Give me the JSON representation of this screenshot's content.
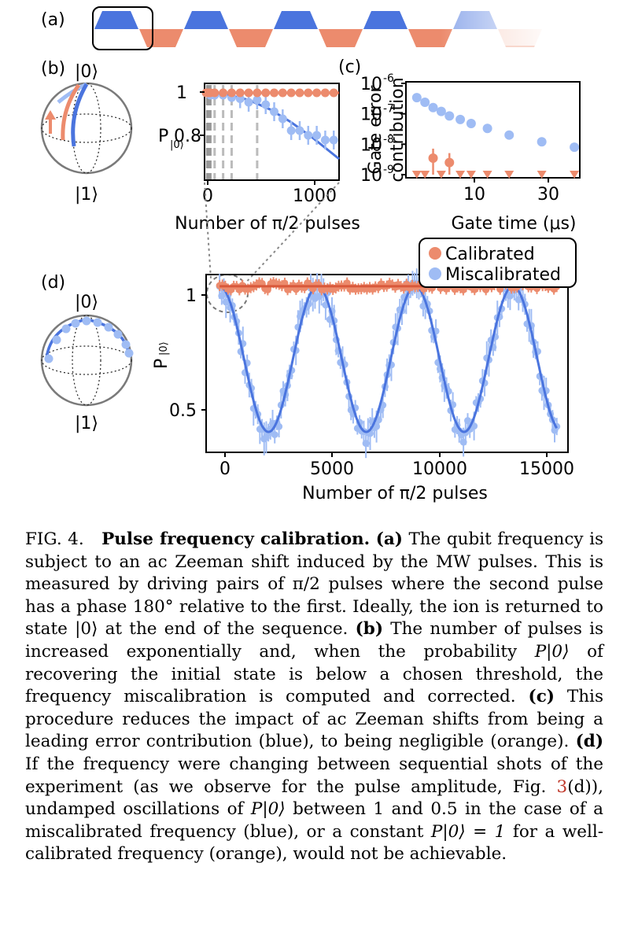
{
  "panel_labels": {
    "a": "(a)",
    "b": "(b)",
    "c": "(c)",
    "d": "(d)"
  },
  "colors": {
    "calibrated": "#ec8b6d",
    "calibrated_fit": "#d9583b",
    "miscalibrated": "#9fbcf4",
    "miscalibrated_fit": "#4a74de",
    "pulse_blue": "#4a74de",
    "pulse_orange": "#ec8b6d"
  },
  "pulses": {
    "description_glyph": "trapezoid-pulse-train",
    "count": 10
  },
  "bloch_b": {
    "top_label": "|0⟩",
    "bottom_label": "|1⟩"
  },
  "bloch_d": {
    "top_label": "|0⟩",
    "bottom_label": "|1⟩"
  },
  "panel_b": {
    "ylabel": "P|0⟩",
    "ylabel_main": "P",
    "ylabel_sub": "|0⟩",
    "xlabel": "Number of π/2 pulses",
    "yticks": [
      "1",
      "0.8"
    ],
    "xticks": [
      "0",
      "1000"
    ]
  },
  "panel_c": {
    "ylabel_line1": "Gate error",
    "ylabel_line2": "contribution",
    "xlabel": "Gate time (μs)",
    "xticks": [
      "10",
      "30"
    ],
    "yticks": [
      {
        "base": "10",
        "exp": "-6"
      },
      {
        "base": "10",
        "exp": "-7"
      },
      {
        "base": "10",
        "exp": "-8"
      },
      {
        "base": "10",
        "exp": "-9"
      }
    ]
  },
  "panel_d": {
    "ylabel_main": "P",
    "ylabel_sub": "|0⟩",
    "xlabel": "Number of π/2 pulses",
    "yticks": [
      "1",
      "0.5"
    ],
    "xticks": [
      "0",
      "5000",
      "10000",
      "15000"
    ],
    "legend": [
      "Calibrated",
      "Miscalibrated"
    ]
  },
  "chart_data": [
    {
      "id": "b",
      "type": "scatter",
      "xlim": [
        0,
        1250
      ],
      "ylim": [
        0.63,
        1.04
      ],
      "xlabel": "Number of π/2 pulses",
      "ylabel": "P|0⟩",
      "series": [
        {
          "name": "Calibrated",
          "x": [
            0,
            10,
            20,
            40,
            80,
            160,
            240,
            320,
            400,
            480,
            560,
            640,
            720,
            800,
            880,
            960,
            1040,
            1120,
            1200
          ],
          "y": [
            1,
            1,
            1,
            1,
            1,
            1,
            1,
            1,
            1,
            1,
            1,
            1,
            1,
            1,
            1,
            1,
            1,
            1,
            1
          ]
        },
        {
          "name": "Miscalibrated",
          "x": [
            0,
            10,
            20,
            40,
            80,
            160,
            240,
            320,
            400,
            480,
            560,
            640,
            720,
            800,
            880,
            960,
            1040,
            1120,
            1200
          ],
          "y": [
            1.0,
            1.0,
            1.0,
            0.99,
            0.99,
            0.99,
            0.98,
            0.975,
            0.96,
            0.97,
            0.95,
            0.92,
            0.89,
            0.84,
            0.84,
            0.82,
            0.82,
            0.8,
            0.8
          ]
        }
      ],
      "fit_miscalibrated": {
        "x": [
          0,
          200,
          400,
          600,
          800,
          1000,
          1250
        ],
        "y": [
          1.0,
          0.992,
          0.97,
          0.93,
          0.875,
          0.81,
          0.72
        ]
      },
      "guide_lines_x": [
        10,
        20,
        40,
        80,
        160,
        240,
        480
      ]
    },
    {
      "id": "c",
      "type": "scatter",
      "xscale": "linear",
      "yscale": "log",
      "xlim": [
        5,
        37
      ],
      "ylim": [
        1e-09,
        1e-06
      ],
      "xlabel": "Gate time (μs)",
      "ylabel": "Gate error contribution",
      "series": [
        {
          "name": "Miscalibrated",
          "x": [
            7,
            8.5,
            10,
            11.5,
            13,
            15,
            17,
            20,
            24,
            30,
            36
          ],
          "y": [
            3.4e-07,
            2.4e-07,
            1.6e-07,
            1.2e-07,
            8.5e-08,
            6.5e-08,
            4.8e-08,
            3.3e-08,
            2e-08,
            1.2e-08,
            8e-09
          ]
        },
        {
          "name": "Calibrated",
          "x": [
            7,
            8.5,
            10,
            11.5,
            13,
            15,
            17,
            20,
            24,
            30,
            36
          ],
          "y": [
            1e-09,
            1e-09,
            3.5e-09,
            1e-09,
            2.5e-09,
            1e-09,
            1e-09,
            1e-09,
            1e-09,
            1e-09,
            1e-09
          ],
          "upper_limit_markers_x": [
            7,
            8.5,
            11.5,
            15,
            17,
            20,
            24,
            30,
            36
          ]
        }
      ]
    },
    {
      "id": "d",
      "type": "scatter",
      "xlim": [
        -600,
        15500
      ],
      "ylim": [
        0.43,
        1.04
      ],
      "xlabel": "Number of π/2 pulses",
      "ylabel": "P|0⟩",
      "series": [
        {
          "name": "Calibrated",
          "model": "constant",
          "value": 1.0,
          "x_range": [
            0,
            15000
          ],
          "points": 120
        },
        {
          "name": "Miscalibrated",
          "model": "0.75 + 0.25*cos(2*pi*x/4350)",
          "x_range": [
            0,
            15000
          ],
          "points": 160
        }
      ],
      "fit_miscalibrated": {
        "period": 4350,
        "center": 0.75,
        "amplitude": 0.25
      }
    }
  ],
  "caption": {
    "fig_label": "FIG. 4.",
    "title": "Pulse frequency calibration.",
    "a_label": "(a)",
    "a_text": "The qubit frequency is subject to an ac Zeeman shift induced by the MW pulses. This is measured by driving pairs of π/2 pulses where the second pulse has a phase 180° relative to the first. Ideally, the ion is returned to state |0⟩ at the end of the sequence.",
    "b_label": "(b)",
    "b_text_1": "The number of pulses is increased exponentially and, when the probability",
    "b_text_P": "P|0⟩",
    "b_text_2": "of recovering the initial state is below a chosen threshold, the frequency miscalibration is computed and corrected.",
    "c_label": "(c)",
    "c_text": "This procedure reduces the impact of ac Zeeman shifts from being a leading error contribution (blue), to being negligible (orange).",
    "d_label": "(d)",
    "d_text_1": "If the frequency were changing between sequential shots of the experiment (as we observe for the pulse amplitude, Fig.",
    "d_ref": "3",
    "d_text_2": "(d)), undamped oscillations of",
    "d_text_P1": "P|0⟩",
    "d_text_3": "between 1 and 0.5 in the case of a miscalibrated frequency (blue), or a constant",
    "d_text_P2": "P|0⟩ = 1",
    "d_text_4": "for a well-calibrated frequency (orange), would not be achievable."
  }
}
